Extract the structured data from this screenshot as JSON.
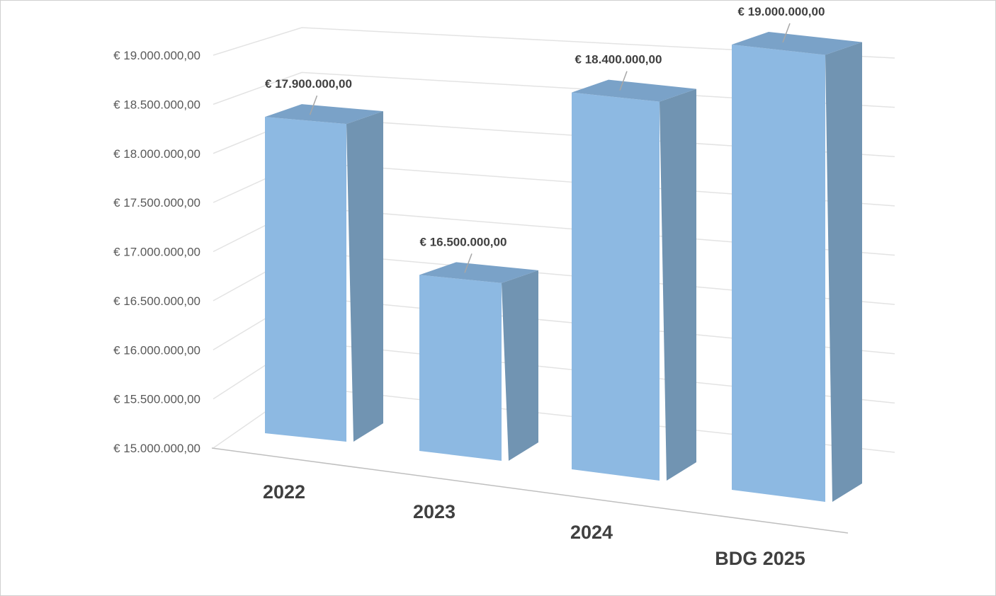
{
  "chart_data": {
    "type": "bar",
    "categories": [
      "2022",
      "2023",
      "2024",
      "BDG 2025"
    ],
    "values": [
      17900000,
      16500000,
      18400000,
      19000000
    ],
    "value_labels": [
      "€ 17.900.000,00",
      "€ 16.500.000,00",
      "€ 18.400.000,00",
      "€ 19.000.000,00"
    ],
    "yticks": [
      {
        "value": 15000000,
        "label": "€ 15.000.000,00"
      },
      {
        "value": 15500000,
        "label": "€ 15.500.000,00"
      },
      {
        "value": 16000000,
        "label": "€ 16.000.000,00"
      },
      {
        "value": 16500000,
        "label": "€ 16.500.000,00"
      },
      {
        "value": 17000000,
        "label": "€ 17.000.000,00"
      },
      {
        "value": 17500000,
        "label": "€ 17.500.000,00"
      },
      {
        "value": 18000000,
        "label": "€ 18.000.000,00"
      },
      {
        "value": 18500000,
        "label": "€ 18.500.000,00"
      },
      {
        "value": 19000000,
        "label": "€ 19.000.000,00"
      }
    ],
    "ylim": [
      15000000,
      19000000
    ],
    "grid": true,
    "style": "3d-column",
    "colors": {
      "front": "#8db9e2",
      "side": "#7194b2",
      "top": "#7aa2c8",
      "grid": "#e3e3e3",
      "axis": "#bfbfbf"
    }
  }
}
